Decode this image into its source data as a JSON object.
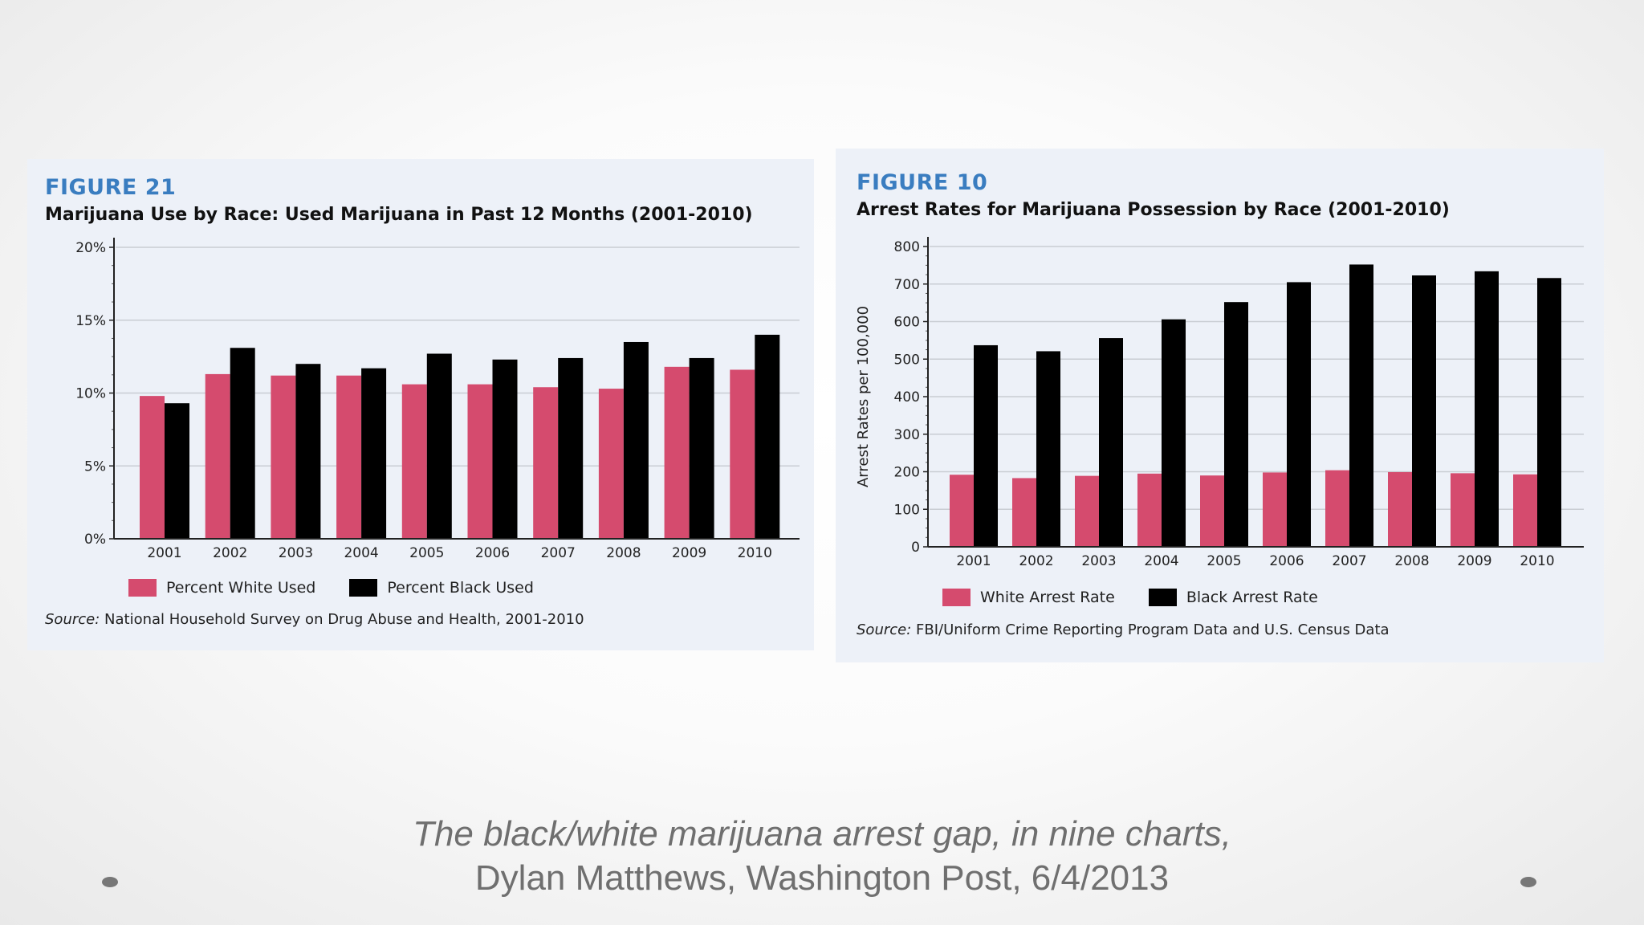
{
  "colors": {
    "white_series": "#d54b6e",
    "black_series": "#000000",
    "figure_number": "#3a7dc0",
    "panel_bg": "#edf1f8"
  },
  "charts": [
    {
      "figure": "FIGURE 21",
      "title": "Marijuana Use by Race: Used Marijuana in Past 12 Months (2001-2010)",
      "legend": [
        "Percent White Used",
        "Percent Black Used"
      ],
      "source_label": "Source:",
      "source_text": " National Household Survey on Drug Abuse and Health, 2001-2010"
    },
    {
      "figure": "FIGURE 10",
      "title": "Arrest Rates for Marijuana Possession by Race (2001-2010)",
      "legend": [
        "White Arrest Rate",
        "Black Arrest Rate"
      ],
      "source_label": "Source:",
      "source_text": " FBI/Uniform Crime Reporting Program Data and U.S. Census Data"
    }
  ],
  "chart_data": [
    {
      "type": "bar",
      "title": "Marijuana Use by Race: Used Marijuana in Past 12 Months (2001-2010)",
      "categories": [
        "2001",
        "2002",
        "2003",
        "2004",
        "2005",
        "2006",
        "2007",
        "2008",
        "2009",
        "2010"
      ],
      "series": [
        {
          "name": "Percent White Used",
          "values": [
            9.8,
            11.3,
            11.2,
            11.2,
            10.6,
            10.6,
            10.4,
            10.3,
            11.8,
            11.6
          ]
        },
        {
          "name": "Percent Black Used",
          "values": [
            9.3,
            13.1,
            12.0,
            11.7,
            12.7,
            12.3,
            12.4,
            13.5,
            12.4,
            14.0
          ]
        }
      ],
      "ylim": [
        0,
        20
      ],
      "yticks": [
        0,
        5,
        10,
        15,
        20
      ],
      "ytick_labels": [
        "0%",
        "5%",
        "10%",
        "15%",
        "20%"
      ],
      "xlabel": "",
      "ylabel": "",
      "grid": true,
      "legend_position": "bottom"
    },
    {
      "type": "bar",
      "title": "Arrest Rates for Marijuana Possession by Race (2001-2010)",
      "categories": [
        "2001",
        "2002",
        "2003",
        "2004",
        "2005",
        "2006",
        "2007",
        "2008",
        "2009",
        "2010"
      ],
      "series": [
        {
          "name": "White Arrest Rate",
          "values": [
            192,
            183,
            189,
            195,
            190,
            198,
            204,
            199,
            196,
            193
          ]
        },
        {
          "name": "Black Arrest Rate",
          "values": [
            537,
            521,
            556,
            606,
            652,
            705,
            752,
            723,
            734,
            716
          ]
        }
      ],
      "ylim": [
        0,
        800
      ],
      "yticks": [
        0,
        100,
        200,
        300,
        400,
        500,
        600,
        700,
        800
      ],
      "ytick_labels": [
        "0",
        "100",
        "200",
        "300",
        "400",
        "500",
        "600",
        "700",
        "800"
      ],
      "xlabel": "",
      "ylabel": "Arrest Rates per 100,000",
      "grid": true,
      "legend_position": "bottom"
    }
  ],
  "caption": {
    "line1": "The black/white marijuana arrest gap, in nine charts,",
    "line2": "Dylan Matthews, Washington Post, 6/4/2013"
  }
}
